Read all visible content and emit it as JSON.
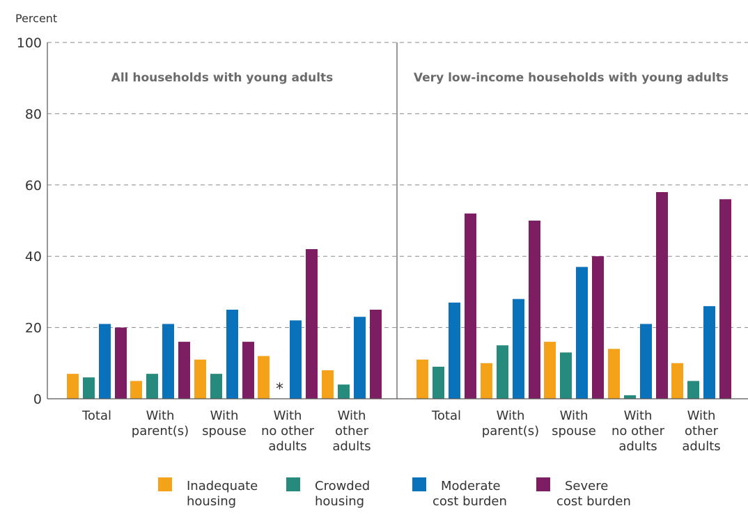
{
  "chart_data": {
    "type": "bar",
    "ylabel": "Percent",
    "ylim": [
      0,
      100
    ],
    "yticks": [
      0,
      20,
      40,
      60,
      80,
      100
    ],
    "grid": true,
    "legend_position": "bottom",
    "series_meta": [
      {
        "name": [
          "Inadequate",
          "housing"
        ],
        "color": "#f5a21b"
      },
      {
        "name": [
          "Crowded",
          "housing"
        ],
        "color": "#268a7c"
      },
      {
        "name": [
          "Moderate",
          "cost burden"
        ],
        "color": "#0a72ba"
      },
      {
        "name": [
          "Severe",
          "cost burden"
        ],
        "color": "#7d1e62"
      }
    ],
    "panels": [
      {
        "title": "All households with young adults",
        "categories": [
          [
            "Total"
          ],
          [
            "With",
            "parent(s)"
          ],
          [
            "With",
            "spouse"
          ],
          [
            "With",
            "no other",
            "adults"
          ],
          [
            "With",
            "other",
            "adults"
          ]
        ],
        "series": [
          {
            "values": [
              7,
              5,
              11,
              12,
              8
            ]
          },
          {
            "values": [
              6,
              7,
              7,
              null,
              4
            ]
          },
          {
            "values": [
              21,
              21,
              25,
              22,
              23
            ]
          },
          {
            "values": [
              20,
              16,
              16,
              42,
              25
            ]
          }
        ],
        "annotations": [
          {
            "category_index": 3,
            "series_index": 1,
            "text": "*"
          }
        ]
      },
      {
        "title": "Very low-income households with young adults",
        "categories": [
          [
            "Total"
          ],
          [
            "With",
            "parent(s)"
          ],
          [
            "With",
            "spouse"
          ],
          [
            "With",
            "no other",
            "adults"
          ],
          [
            "With",
            "other",
            "adults"
          ]
        ],
        "series": [
          {
            "values": [
              11,
              10,
              16,
              14,
              10
            ]
          },
          {
            "values": [
              9,
              15,
              13,
              1,
              5
            ]
          },
          {
            "values": [
              27,
              28,
              37,
              21,
              26
            ]
          },
          {
            "values": [
              52,
              50,
              40,
              58,
              56
            ]
          }
        ],
        "annotations": []
      }
    ]
  }
}
